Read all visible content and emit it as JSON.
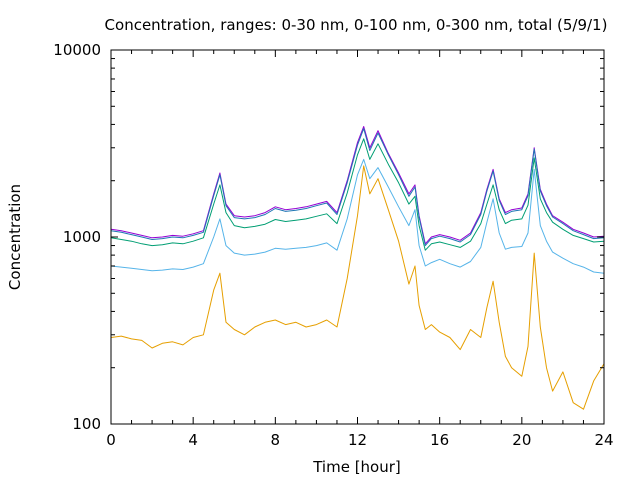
{
  "chart_data": {
    "type": "line",
    "title": "Concentration, ranges: 0-30 nm, 0-100 nm, 0-300 nm, total (5/9/1)",
    "xlabel": "Time [hour]",
    "ylabel": "Concentration",
    "xlim": [
      0,
      24
    ],
    "ylim": [
      100,
      10000
    ],
    "yscale": "log",
    "xticks": [
      0,
      4,
      8,
      12,
      16,
      20,
      24
    ],
    "yticks": [
      100,
      1000,
      10000
    ],
    "ytick_labels": [
      "100",
      "1000",
      "10000"
    ],
    "grid": false,
    "legend": "none",
    "x": [
      0,
      0.5,
      1,
      1.5,
      2,
      2.5,
      3,
      3.5,
      4,
      4.5,
      5,
      5.3,
      5.6,
      6,
      6.5,
      7,
      7.5,
      8,
      8.5,
      9,
      9.5,
      10,
      10.5,
      11,
      11.5,
      12,
      12.3,
      12.6,
      13,
      13.5,
      14,
      14.5,
      14.8,
      15,
      15.3,
      15.6,
      16,
      16.5,
      17,
      17.5,
      18,
      18.3,
      18.6,
      18.9,
      19.2,
      19.5,
      20,
      20.3,
      20.6,
      20.9,
      21.2,
      21.5,
      22,
      22.5,
      23,
      23.5,
      24
    ],
    "series": [
      {
        "color": "#9400d3",
        "values": [
          1100,
          1080,
          1050,
          1020,
          990,
          1000,
          1020,
          1010,
          1040,
          1080,
          1700,
          2200,
          1500,
          1300,
          1280,
          1300,
          1350,
          1450,
          1400,
          1420,
          1450,
          1500,
          1550,
          1350,
          2000,
          3200,
          3900,
          3000,
          3700,
          2800,
          2200,
          1700,
          1900,
          1300,
          920,
          1000,
          1030,
          1000,
          960,
          1050,
          1350,
          1800,
          2300,
          1600,
          1350,
          1400,
          1430,
          1700,
          3000,
          1800,
          1500,
          1300,
          1200,
          1100,
          1050,
          1000,
          1010
        ]
      },
      {
        "color": "#1f77b4",
        "values": [
          1080,
          1060,
          1030,
          1000,
          970,
          980,
          1000,
          990,
          1020,
          1060,
          1660,
          2150,
          1470,
          1270,
          1250,
          1270,
          1320,
          1420,
          1370,
          1390,
          1420,
          1470,
          1520,
          1320,
          1950,
          3100,
          3800,
          2900,
          3600,
          2750,
          2150,
          1650,
          1850,
          1270,
          900,
          980,
          1010,
          980,
          940,
          1030,
          1320,
          1760,
          2250,
          1570,
          1320,
          1370,
          1400,
          1660,
          2950,
          1760,
          1470,
          1280,
          1180,
          1080,
          1030,
          980,
          990
        ]
      },
      {
        "color": "#009e73",
        "values": [
          990,
          970,
          950,
          920,
          900,
          910,
          930,
          920,
          950,
          990,
          1500,
          1900,
          1350,
          1150,
          1120,
          1140,
          1170,
          1240,
          1210,
          1230,
          1250,
          1290,
          1330,
          1180,
          1720,
          2750,
          3350,
          2600,
          3150,
          2450,
          1950,
          1500,
          1650,
          1150,
          850,
          920,
          940,
          910,
          880,
          950,
          1180,
          1500,
          1900,
          1400,
          1180,
          1230,
          1250,
          1480,
          2650,
          1600,
          1350,
          1200,
          1100,
          1020,
          980,
          940,
          950
        ]
      },
      {
        "color": "#56b4e9",
        "values": [
          700,
          690,
          680,
          670,
          660,
          665,
          675,
          670,
          690,
          720,
          1000,
          1250,
          900,
          820,
          800,
          810,
          830,
          870,
          860,
          870,
          880,
          900,
          930,
          850,
          1250,
          2150,
          2600,
          2050,
          2350,
          1850,
          1450,
          1150,
          1400,
          900,
          700,
          730,
          760,
          720,
          690,
          740,
          880,
          1200,
          1600,
          1050,
          860,
          880,
          890,
          1050,
          2300,
          1150,
          950,
          830,
          770,
          720,
          690,
          650,
          640
        ]
      },
      {
        "color": "#e69f00",
        "values": [
          290,
          295,
          285,
          280,
          255,
          270,
          275,
          265,
          290,
          300,
          520,
          640,
          350,
          320,
          300,
          330,
          350,
          360,
          340,
          350,
          330,
          340,
          360,
          330,
          600,
          1300,
          2400,
          1700,
          2050,
          1400,
          950,
          560,
          700,
          430,
          320,
          340,
          310,
          290,
          250,
          320,
          290,
          420,
          580,
          350,
          230,
          200,
          180,
          260,
          820,
          330,
          200,
          150,
          190,
          130,
          120,
          170,
          210
        ]
      }
    ]
  }
}
